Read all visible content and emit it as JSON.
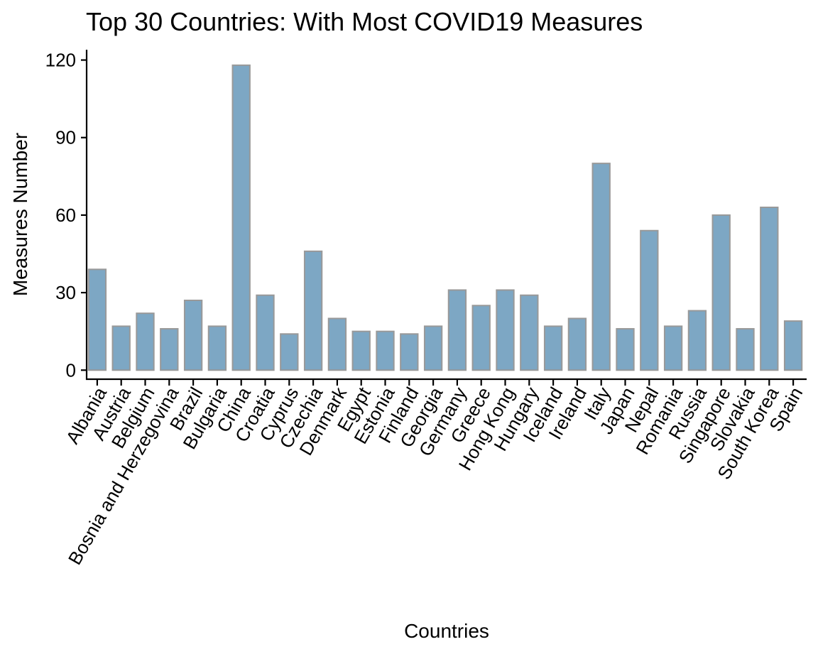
{
  "chart_data": {
    "type": "bar",
    "title": "Top 30 Countries: With Most COVID19 Measures",
    "xlabel": "Countries",
    "ylabel": "Measures Number",
    "ylim": [
      -3.5,
      124
    ],
    "yticks": [
      0,
      30,
      60,
      90,
      120
    ],
    "grid": false,
    "legend": "none",
    "bar_fill": "#7da7c4",
    "bar_stroke": "#999999",
    "categories": [
      "Albania",
      "Austria",
      "Belgium",
      "Bosnia and Herzegovina",
      "Brazil",
      "Bulgaria",
      "China",
      "Croatia",
      "Cyprus",
      "Czechia",
      "Denmark",
      "Egypt",
      "Estonia",
      "Finland",
      "Georgia",
      "Germany",
      "Greece",
      "Hong Kong",
      "Hungary",
      "Iceland",
      "Ireland",
      "Italy",
      "Japan",
      "Nepal",
      "Romania",
      "Russia",
      "Singapore",
      "Slovakia",
      "South Korea",
      "Spain"
    ],
    "values": [
      39,
      17,
      22,
      16,
      27,
      17,
      118,
      29,
      14,
      46,
      20,
      15,
      15,
      14,
      17,
      31,
      25,
      31,
      29,
      17,
      20,
      80,
      16,
      54,
      17,
      23,
      60,
      16,
      63,
      19
    ]
  }
}
